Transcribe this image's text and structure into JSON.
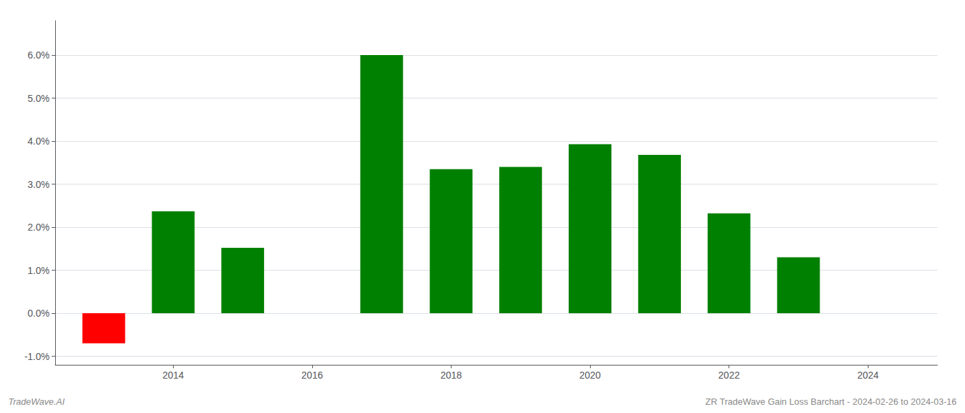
{
  "chart_data": {
    "type": "bar",
    "x": [
      2013,
      2014,
      2015,
      2017,
      2018,
      2019,
      2020,
      2021,
      2022,
      2023
    ],
    "values": [
      -0.007,
      0.0237,
      0.0152,
      0.06,
      0.0335,
      0.034,
      0.0393,
      0.0368,
      0.0232,
      0.013
    ],
    "colors": [
      "#ff0000",
      "#008000",
      "#008000",
      "#008000",
      "#008000",
      "#008000",
      "#008000",
      "#008000",
      "#008000",
      "#008000"
    ],
    "xlim": [
      2012.3,
      2025.0
    ],
    "xticks": [
      2014,
      2016,
      2018,
      2020,
      2022,
      2024
    ],
    "ylim": [
      -0.012,
      0.068
    ],
    "yticks": [
      {
        "value": -0.01,
        "label": "-1.0%"
      },
      {
        "value": 0.0,
        "label": "0.0%"
      },
      {
        "value": 0.01,
        "label": "1.0%"
      },
      {
        "value": 0.02,
        "label": "2.0%"
      },
      {
        "value": 0.03,
        "label": "3.0%"
      },
      {
        "value": 0.04,
        "label": "4.0%"
      },
      {
        "value": 0.05,
        "label": "5.0%"
      },
      {
        "value": 0.06,
        "label": "6.0%"
      }
    ],
    "grid": true,
    "annotations": [
      "TradeWave.AI",
      "ZR TradeWave Gain Loss Barchart - 2024-02-26 to 2024-03-16"
    ]
  }
}
